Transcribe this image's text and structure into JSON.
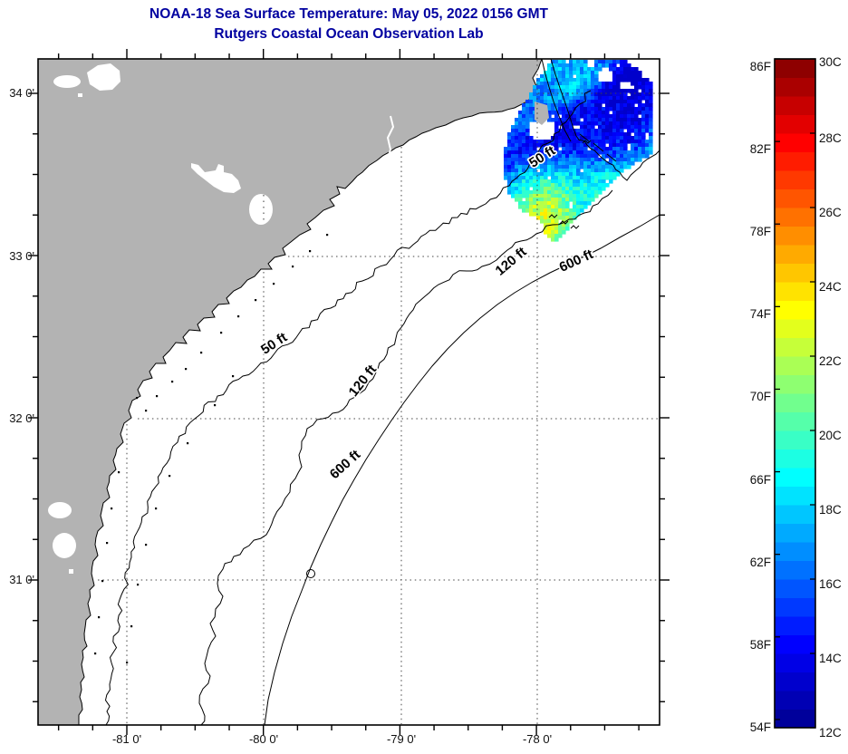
{
  "title": {
    "line1": "NOAA-18 Sea Surface Temperature:  May 05, 2022 0156 GMT",
    "line2": "Rutgers Coastal Ocean Observation Lab",
    "color": "#0000a0"
  },
  "map": {
    "ocean_color": "#ffffff",
    "land_color": "#b3b3b3",
    "graticule_color": "#444444",
    "x_tick_labels": [
      "-81 0'",
      "-80 0'",
      "-79 0'",
      "-78 0'"
    ],
    "y_tick_labels": [
      "34 0'",
      "33 0'",
      "32 0'",
      "31 0'"
    ],
    "contour_labels": [
      {
        "text": "50 ft"
      },
      {
        "text": "50 ft"
      },
      {
        "text": "120 ft"
      },
      {
        "text": "120 ft"
      },
      {
        "text": "600 ft"
      },
      {
        "text": "600 ft"
      }
    ]
  },
  "colorbar": {
    "f_labels": [
      "86F",
      "82F",
      "78F",
      "74F",
      "70F",
      "66F",
      "62F",
      "58F",
      "54F"
    ],
    "c_labels": [
      "30C",
      "28C",
      "26C",
      "24C",
      "22C",
      "20C",
      "18C",
      "16C",
      "14C",
      "12C"
    ],
    "scale_min_c": 12,
    "scale_max_c": 30,
    "jet_stops": [
      {
        "s": 0.0,
        "c": "#00008f"
      },
      {
        "s": 0.125,
        "c": "#0000ff"
      },
      {
        "s": 0.375,
        "c": "#00ffff"
      },
      {
        "s": 0.625,
        "c": "#ffff00"
      },
      {
        "s": 0.875,
        "c": "#ff0000"
      },
      {
        "s": 1.0,
        "c": "#800000"
      }
    ]
  }
}
